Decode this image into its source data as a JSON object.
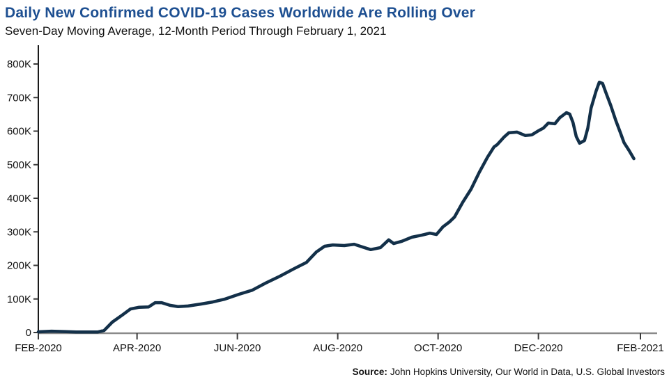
{
  "title": "Daily New Confirmed COVID-19 Cases Worldwide Are Rolling Over",
  "subtitle": "Seven-Day Moving Average, 12-Month Period Through February 1, 2021",
  "source": {
    "label": "Source:",
    "text": "John Hopkins University, Our World in Data, U.S. Global Investors"
  },
  "colors": {
    "title": "#1d4f91",
    "line": "#133049",
    "y_axis": "#1a1a1a",
    "x_axis": "#8a8a8a",
    "tick": "#3a3a3a",
    "text": "#111111"
  },
  "chart_data": {
    "type": "line",
    "title": "Daily New Confirmed COVID-19 Cases Worldwide Are Rolling Over",
    "subtitle": "Seven-Day Moving Average, 12-Month Period Through February 1, 2021",
    "xlabel": "",
    "ylabel": "",
    "grid": false,
    "legend": false,
    "ylim": [
      0,
      850000
    ],
    "x_range": {
      "start": "2020-02-01",
      "end": "2021-02-01"
    },
    "y_ticks": [
      {
        "value": 0,
        "label": "0"
      },
      {
        "value": 100000,
        "label": "100K"
      },
      {
        "value": 200000,
        "label": "200K"
      },
      {
        "value": 300000,
        "label": "300K"
      },
      {
        "value": 400000,
        "label": "400K"
      },
      {
        "value": 500000,
        "label": "500K"
      },
      {
        "value": 600000,
        "label": "600K"
      },
      {
        "value": 700000,
        "label": "700K"
      },
      {
        "value": 800000,
        "label": "800K"
      }
    ],
    "x_ticks": [
      {
        "date": "2020-02-01",
        "label": "FEB-2020"
      },
      {
        "date": "2020-04-01",
        "label": "APR-2020"
      },
      {
        "date": "2020-06-01",
        "label": "JUN-2020"
      },
      {
        "date": "2020-08-01",
        "label": "AUG-2020"
      },
      {
        "date": "2020-10-01",
        "label": "OCT-2020"
      },
      {
        "date": "2020-12-01",
        "label": "DEC-2020"
      },
      {
        "date": "2021-02-01",
        "label": "FEB-2021"
      }
    ],
    "series": [
      {
        "name": "Seven-day moving average of daily new confirmed COVID-19 cases worldwide",
        "points": [
          {
            "date": "2020-02-01",
            "value": 2000
          },
          {
            "date": "2020-02-09",
            "value": 4000
          },
          {
            "date": "2020-02-18",
            "value": 2500
          },
          {
            "date": "2020-02-24",
            "value": 1500
          },
          {
            "date": "2020-03-08",
            "value": 1500
          },
          {
            "date": "2020-03-12",
            "value": 6000
          },
          {
            "date": "2020-03-17",
            "value": 31000
          },
          {
            "date": "2020-03-23",
            "value": 52000
          },
          {
            "date": "2020-03-28",
            "value": 70000
          },
          {
            "date": "2020-04-02",
            "value": 75000
          },
          {
            "date": "2020-04-08",
            "value": 76000
          },
          {
            "date": "2020-04-12",
            "value": 89000
          },
          {
            "date": "2020-04-16",
            "value": 89000
          },
          {
            "date": "2020-04-21",
            "value": 81000
          },
          {
            "date": "2020-04-26",
            "value": 77000
          },
          {
            "date": "2020-05-02",
            "value": 79000
          },
          {
            "date": "2020-05-10",
            "value": 85000
          },
          {
            "date": "2020-05-17",
            "value": 91000
          },
          {
            "date": "2020-05-24",
            "value": 99000
          },
          {
            "date": "2020-06-02",
            "value": 114000
          },
          {
            "date": "2020-06-10",
            "value": 126000
          },
          {
            "date": "2020-06-18",
            "value": 147000
          },
          {
            "date": "2020-06-27",
            "value": 168000
          },
          {
            "date": "2020-07-05",
            "value": 189000
          },
          {
            "date": "2020-07-13",
            "value": 209000
          },
          {
            "date": "2020-07-19",
            "value": 240000
          },
          {
            "date": "2020-07-24",
            "value": 257000
          },
          {
            "date": "2020-07-29",
            "value": 261000
          },
          {
            "date": "2020-08-05",
            "value": 259000
          },
          {
            "date": "2020-08-11",
            "value": 263000
          },
          {
            "date": "2020-08-16",
            "value": 255000
          },
          {
            "date": "2020-08-21",
            "value": 247000
          },
          {
            "date": "2020-08-27",
            "value": 253000
          },
          {
            "date": "2020-09-01",
            "value": 276000
          },
          {
            "date": "2020-09-04",
            "value": 265000
          },
          {
            "date": "2020-09-09",
            "value": 272000
          },
          {
            "date": "2020-09-15",
            "value": 284000
          },
          {
            "date": "2020-09-21",
            "value": 290000
          },
          {
            "date": "2020-09-26",
            "value": 296000
          },
          {
            "date": "2020-09-30",
            "value": 292000
          },
          {
            "date": "2020-10-04",
            "value": 315000
          },
          {
            "date": "2020-10-08",
            "value": 330000
          },
          {
            "date": "2020-10-11",
            "value": 344000
          },
          {
            "date": "2020-10-16",
            "value": 388000
          },
          {
            "date": "2020-10-21",
            "value": 427000
          },
          {
            "date": "2020-10-26",
            "value": 477000
          },
          {
            "date": "2020-10-31",
            "value": 522000
          },
          {
            "date": "2020-11-04",
            "value": 553000
          },
          {
            "date": "2020-11-06",
            "value": 560000
          },
          {
            "date": "2020-11-10",
            "value": 582000
          },
          {
            "date": "2020-11-13",
            "value": 595000
          },
          {
            "date": "2020-11-18",
            "value": 597000
          },
          {
            "date": "2020-11-23",
            "value": 587000
          },
          {
            "date": "2020-11-27",
            "value": 589000
          },
          {
            "date": "2020-12-01",
            "value": 601000
          },
          {
            "date": "2020-12-04",
            "value": 609000
          },
          {
            "date": "2020-12-07",
            "value": 624000
          },
          {
            "date": "2020-12-11",
            "value": 622000
          },
          {
            "date": "2020-12-14",
            "value": 640000
          },
          {
            "date": "2020-12-18",
            "value": 655000
          },
          {
            "date": "2020-12-20",
            "value": 651000
          },
          {
            "date": "2020-12-22",
            "value": 626000
          },
          {
            "date": "2020-12-24",
            "value": 584000
          },
          {
            "date": "2020-12-26",
            "value": 564000
          },
          {
            "date": "2020-12-29",
            "value": 572000
          },
          {
            "date": "2020-12-31",
            "value": 609000
          },
          {
            "date": "2021-01-02",
            "value": 669000
          },
          {
            "date": "2021-01-05",
            "value": 719000
          },
          {
            "date": "2021-01-07",
            "value": 746000
          },
          {
            "date": "2021-01-09",
            "value": 742000
          },
          {
            "date": "2021-01-11",
            "value": 715000
          },
          {
            "date": "2021-01-14",
            "value": 676000
          },
          {
            "date": "2021-01-17",
            "value": 632000
          },
          {
            "date": "2021-01-20",
            "value": 593000
          },
          {
            "date": "2021-01-22",
            "value": 566000
          },
          {
            "date": "2021-01-25",
            "value": 543000
          },
          {
            "date": "2021-01-28",
            "value": 518000
          }
        ]
      }
    ]
  }
}
